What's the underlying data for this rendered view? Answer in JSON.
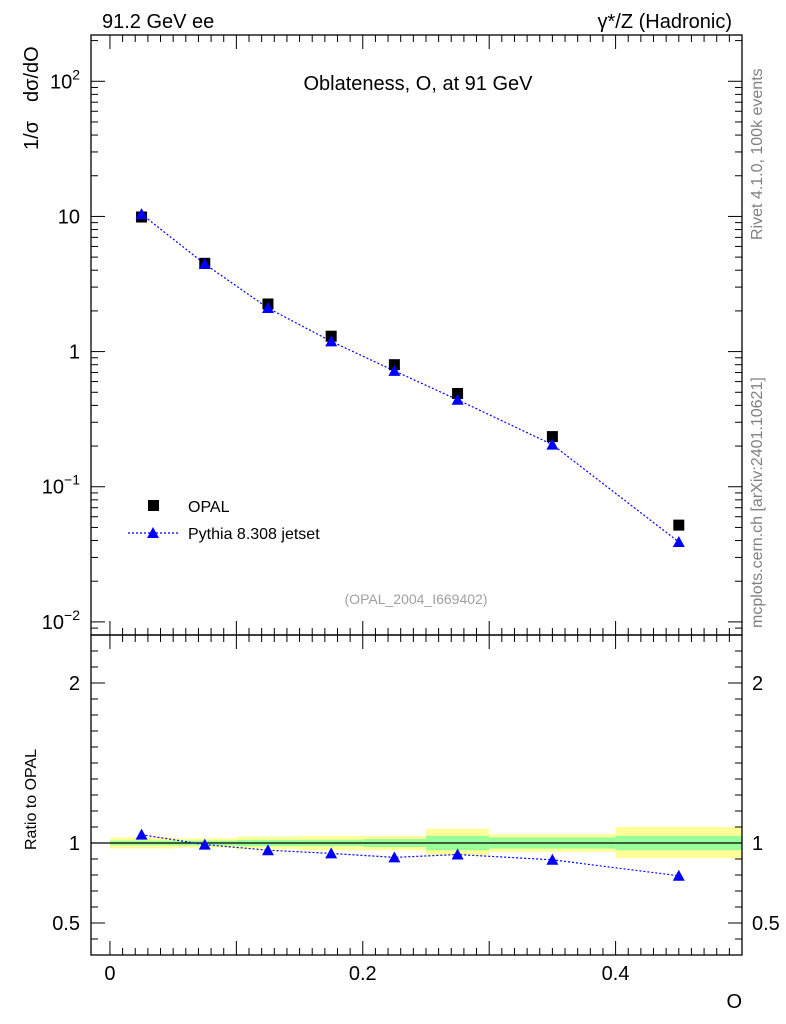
{
  "header": {
    "left": "91.2 GeV ee",
    "right": "γ*/Z (Hadronic)"
  },
  "side_labels": {
    "rivet": "Rivet 4.1.0,  100k events",
    "mcplots": "mcplots.cern.ch [arXiv:2401.10621]"
  },
  "chart_data": [
    {
      "type": "scatter",
      "panel": "main",
      "title": "Oblateness, O, at 91 GeV",
      "ylabel_parts": [
        "1/σ",
        "dσ/dO"
      ],
      "xlabel": "O",
      "yscale": "log",
      "ylim": [
        0.008,
        220
      ],
      "xlim": [
        -0.015,
        0.5
      ],
      "reference": "(OPAL_2004_I669402)",
      "ytick_labels": [
        {
          "v": 0.01,
          "base": "10",
          "exp": "−2"
        },
        {
          "v": 0.1,
          "base": "10",
          "exp": "−1"
        },
        {
          "v": 1,
          "text": "1"
        },
        {
          "v": 10,
          "text": "10"
        },
        {
          "v": 100,
          "base": "10",
          "exp": "2"
        }
      ],
      "x": [
        0.025,
        0.075,
        0.125,
        0.175,
        0.225,
        0.275,
        0.35,
        0.45
      ],
      "series": [
        {
          "name": "OPAL",
          "marker": "square",
          "color": "#000000",
          "values": [
            9.9,
            4.5,
            2.25,
            1.3,
            0.8,
            0.49,
            0.235,
            0.052
          ]
        },
        {
          "name": "Pythia 8.308 jetset",
          "marker": "triangle",
          "color": "#0000ff",
          "line": "dotted",
          "values": [
            10.4,
            4.45,
            2.1,
            1.19,
            0.72,
            0.44,
            0.205,
            0.039
          ]
        }
      ]
    },
    {
      "type": "scatter",
      "panel": "ratio",
      "ylabel": "Ratio to OPAL",
      "xlabel": "O",
      "ylim": [
        0.3,
        2.3
      ],
      "xlim": [
        -0.015,
        0.5
      ],
      "xtick_labels": [
        "0",
        "0.2",
        "0.4"
      ],
      "xtick_values": [
        0,
        0.2,
        0.4
      ],
      "ytick_labels": [
        "0.5",
        "1",
        "2"
      ],
      "ytick_values": [
        0.5,
        1,
        2
      ],
      "bins": [
        [
          0,
          0.05
        ],
        [
          0.05,
          0.1
        ],
        [
          0.1,
          0.15
        ],
        [
          0.15,
          0.2
        ],
        [
          0.2,
          0.25
        ],
        [
          0.25,
          0.3
        ],
        [
          0.3,
          0.4
        ],
        [
          0.4,
          0.5
        ]
      ],
      "band_inner": [
        [
          0.985,
          1.015
        ],
        [
          0.985,
          1.015
        ],
        [
          0.98,
          1.02
        ],
        [
          0.98,
          1.02
        ],
        [
          0.975,
          1.025
        ],
        [
          0.955,
          1.045
        ],
        [
          0.965,
          1.035
        ],
        [
          0.955,
          1.045
        ]
      ],
      "band_outer": [
        [
          0.965,
          1.035
        ],
        [
          0.97,
          1.03
        ],
        [
          0.96,
          1.04
        ],
        [
          0.955,
          1.045
        ],
        [
          0.955,
          1.045
        ],
        [
          0.925,
          1.09
        ],
        [
          0.945,
          1.055
        ],
        [
          0.905,
          1.1
        ]
      ],
      "x": [
        0.025,
        0.075,
        0.125,
        0.175,
        0.225,
        0.275,
        0.35,
        0.45
      ],
      "series": [
        {
          "name": "Pythia 8.308 jetset",
          "marker": "triangle",
          "color": "#0000ff",
          "line": "dotted",
          "values": [
            1.052,
            0.99,
            0.955,
            0.935,
            0.91,
            0.928,
            0.895,
            0.795
          ],
          "errors": [
            0,
            0,
            0,
            0,
            0,
            0,
            0,
            0.03
          ]
        }
      ]
    }
  ]
}
